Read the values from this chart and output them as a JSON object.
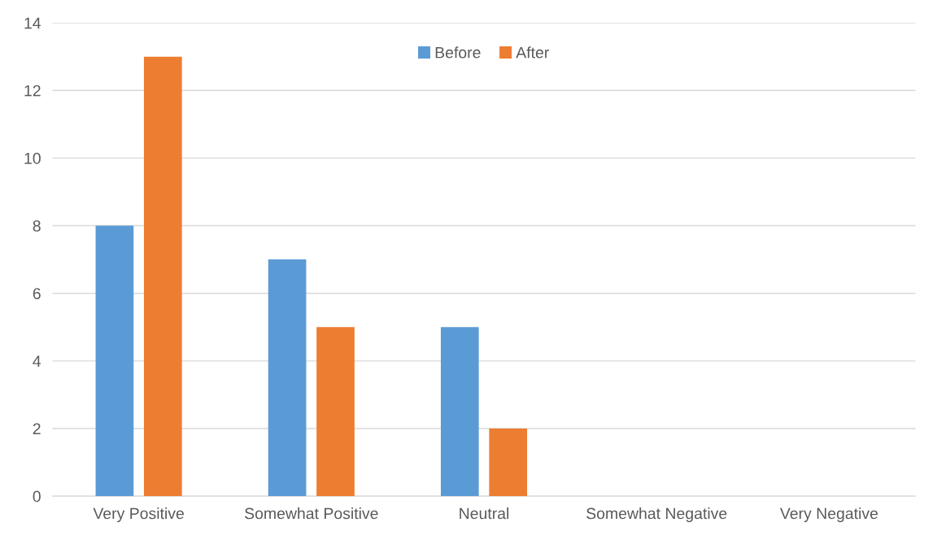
{
  "chart_data": {
    "type": "bar",
    "categories": [
      "Very Positive",
      "Somewhat Positive",
      "Neutral",
      "Somewhat Negative",
      "Very Negative"
    ],
    "series": [
      {
        "name": "Before",
        "color": "#5b9bd5",
        "values": [
          8,
          7,
          5,
          0,
          0
        ]
      },
      {
        "name": "After",
        "color": "#ed7d31",
        "values": [
          13,
          5,
          2,
          0,
          0
        ]
      }
    ],
    "ylim": [
      0,
      14
    ],
    "yticks": [
      0,
      2,
      4,
      6,
      8,
      10,
      12,
      14
    ],
    "grid": "y",
    "legend": "top"
  }
}
